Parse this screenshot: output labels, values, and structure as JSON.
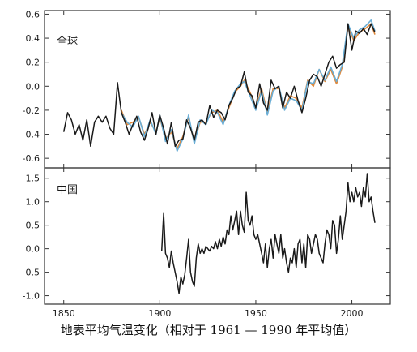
{
  "caption": "地表平均气温变化（相对于 1961 — 1990 年平均值）",
  "colors": {
    "black": "#1a1a1a",
    "orange": "#e0883a",
    "blue": "#6aaed6",
    "frame": "#333333"
  },
  "chart_data": [
    {
      "type": "line",
      "title": "全球",
      "xlim": [
        1840,
        2020
      ],
      "ylim": [
        -0.68,
        0.63
      ],
      "xticks": [
        1850,
        1900,
        1950,
        2000
      ],
      "yticks": [
        -0.6,
        -0.4,
        -0.2,
        0.0,
        0.2,
        0.4,
        0.6
      ],
      "ytick_labels": [
        "-0.6",
        "-0.4",
        "-0.2",
        "0.0",
        "0.2",
        "0.4",
        "0.6"
      ],
      "grid": false,
      "series": [
        {
          "color": "#e0883a",
          "x": [
            1880,
            1883,
            1886,
            1889,
            1892,
            1895,
            1898,
            1900,
            1903,
            1906,
            1909,
            1912,
            1915,
            1918,
            1921,
            1924,
            1927,
            1930,
            1933,
            1936,
            1939,
            1942,
            1944,
            1947,
            1950,
            1953,
            1956,
            1959,
            1962,
            1965,
            1968,
            1971,
            1974,
            1977,
            1980,
            1983,
            1986,
            1989,
            1992,
            1995,
            1998,
            2001,
            2004,
            2007,
            2010,
            2012
          ],
          "y": [
            -0.2,
            -0.32,
            -0.3,
            -0.26,
            -0.4,
            -0.3,
            -0.38,
            -0.26,
            -0.44,
            -0.38,
            -0.52,
            -0.42,
            -0.26,
            -0.46,
            -0.3,
            -0.3,
            -0.22,
            -0.2,
            -0.3,
            -0.18,
            -0.05,
            0.0,
            0.05,
            -0.05,
            -0.18,
            -0.02,
            -0.22,
            -0.02,
            -0.02,
            -0.18,
            -0.08,
            -0.1,
            -0.18,
            0.05,
            0.0,
            0.14,
            0.04,
            0.14,
            0.02,
            0.16,
            0.5,
            0.38,
            0.45,
            0.48,
            0.52,
            0.43
          ]
        },
        {
          "color": "#6aaed6",
          "x": [
            1880,
            1883,
            1886,
            1889,
            1892,
            1895,
            1898,
            1900,
            1903,
            1906,
            1909,
            1912,
            1915,
            1918,
            1921,
            1924,
            1927,
            1930,
            1933,
            1936,
            1939,
            1942,
            1944,
            1947,
            1950,
            1953,
            1956,
            1959,
            1962,
            1965,
            1968,
            1971,
            1974,
            1977,
            1980,
            1983,
            1986,
            1989,
            1992,
            1995,
            1998,
            2001,
            2004,
            2007,
            2010,
            2012
          ],
          "y": [
            -0.22,
            -0.3,
            -0.34,
            -0.25,
            -0.42,
            -0.28,
            -0.4,
            -0.24,
            -0.46,
            -0.36,
            -0.54,
            -0.44,
            -0.24,
            -0.48,
            -0.28,
            -0.32,
            -0.2,
            -0.22,
            -0.32,
            -0.16,
            -0.04,
            0.02,
            0.04,
            -0.08,
            -0.2,
            -0.04,
            -0.24,
            -0.04,
            0.0,
            -0.2,
            -0.1,
            -0.12,
            -0.2,
            0.04,
            0.02,
            0.14,
            0.05,
            0.16,
            0.04,
            0.18,
            0.52,
            0.4,
            0.47,
            0.5,
            0.55,
            0.46
          ]
        },
        {
          "color": "#1a1a1a",
          "x": [
            1850,
            1852,
            1854,
            1856,
            1858,
            1860,
            1862,
            1864,
            1866,
            1868,
            1870,
            1872,
            1874,
            1876,
            1878,
            1880,
            1882,
            1884,
            1886,
            1888,
            1890,
            1892,
            1894,
            1896,
            1898,
            1900,
            1902,
            1904,
            1906,
            1908,
            1910,
            1912,
            1914,
            1916,
            1918,
            1920,
            1922,
            1924,
            1926,
            1928,
            1930,
            1932,
            1934,
            1936,
            1938,
            1940,
            1942,
            1944,
            1946,
            1948,
            1950,
            1952,
            1954,
            1956,
            1958,
            1960,
            1962,
            1964,
            1966,
            1968,
            1970,
            1972,
            1974,
            1976,
            1978,
            1980,
            1982,
            1984,
            1986,
            1988,
            1990,
            1992,
            1994,
            1996,
            1998,
            2000,
            2002,
            2004,
            2006,
            2008,
            2010,
            2012
          ],
          "y": [
            -0.38,
            -0.22,
            -0.28,
            -0.4,
            -0.32,
            -0.45,
            -0.28,
            -0.5,
            -0.3,
            -0.25,
            -0.3,
            -0.25,
            -0.35,
            -0.4,
            0.03,
            -0.22,
            -0.3,
            -0.4,
            -0.32,
            -0.25,
            -0.38,
            -0.45,
            -0.35,
            -0.22,
            -0.4,
            -0.24,
            -0.35,
            -0.48,
            -0.3,
            -0.5,
            -0.45,
            -0.44,
            -0.28,
            -0.35,
            -0.45,
            -0.3,
            -0.28,
            -0.32,
            -0.16,
            -0.26,
            -0.2,
            -0.22,
            -0.28,
            -0.16,
            -0.1,
            -0.02,
            0.0,
            0.12,
            -0.05,
            -0.08,
            -0.18,
            0.02,
            -0.14,
            -0.2,
            0.05,
            -0.02,
            0.0,
            -0.18,
            -0.05,
            -0.1,
            0.0,
            -0.12,
            -0.22,
            -0.1,
            0.05,
            0.1,
            0.08,
            0.0,
            0.1,
            0.2,
            0.25,
            0.15,
            0.18,
            0.2,
            0.52,
            0.3,
            0.46,
            0.44,
            0.48,
            0.43,
            0.52,
            0.45
          ]
        }
      ]
    },
    {
      "type": "line",
      "title": "中国",
      "xlim": [
        1840,
        2020
      ],
      "ylim": [
        -1.18,
        1.72
      ],
      "xticks": [
        1850,
        1900,
        1950,
        2000
      ],
      "xtick_labels": [
        "1850",
        "1900",
        "1950",
        "2000"
      ],
      "yticks": [
        -1.0,
        -0.5,
        0.0,
        0.5,
        1.0,
        1.5
      ],
      "ytick_labels": [
        "-1.0",
        "-0.5",
        "0.0",
        "0.5",
        "1.0",
        "1.5"
      ],
      "grid": false,
      "series": [
        {
          "color": "#1a1a1a",
          "x": [
            1901,
            1902,
            1903,
            1904,
            1905,
            1906,
            1907,
            1908,
            1909,
            1910,
            1911,
            1912,
            1913,
            1914,
            1915,
            1916,
            1917,
            1918,
            1919,
            1920,
            1921,
            1922,
            1923,
            1924,
            1925,
            1926,
            1927,
            1928,
            1929,
            1930,
            1931,
            1932,
            1933,
            1934,
            1935,
            1936,
            1937,
            1938,
            1939,
            1940,
            1941,
            1942,
            1943,
            1944,
            1945,
            1946,
            1947,
            1948,
            1949,
            1950,
            1951,
            1952,
            1953,
            1954,
            1955,
            1956,
            1957,
            1958,
            1959,
            1960,
            1961,
            1962,
            1963,
            1964,
            1965,
            1966,
            1967,
            1968,
            1969,
            1970,
            1971,
            1972,
            1973,
            1974,
            1975,
            1976,
            1977,
            1978,
            1979,
            1980,
            1981,
            1982,
            1983,
            1984,
            1985,
            1986,
            1987,
            1988,
            1989,
            1990,
            1991,
            1992,
            1993,
            1994,
            1995,
            1996,
            1997,
            1998,
            1999,
            2000,
            2001,
            2002,
            2003,
            2004,
            2005,
            2006,
            2007,
            2008,
            2009,
            2010,
            2011,
            2012
          ],
          "y": [
            -0.05,
            0.75,
            -0.1,
            -0.2,
            -0.4,
            -0.05,
            -0.3,
            -0.5,
            -0.7,
            -0.95,
            -0.6,
            -0.75,
            -0.55,
            -0.2,
            0.2,
            -0.5,
            -0.7,
            -0.8,
            -0.2,
            0.1,
            -0.1,
            0.0,
            -0.1,
            0.05,
            0.0,
            -0.05,
            0.05,
            0.0,
            0.15,
            0.0,
            0.2,
            0.05,
            0.25,
            0.1,
            0.4,
            0.3,
            0.7,
            0.4,
            0.6,
            0.8,
            0.3,
            0.8,
            0.5,
            0.35,
            1.2,
            0.6,
            0.5,
            0.7,
            0.3,
            0.2,
            0.3,
            0.1,
            -0.1,
            -0.3,
            0.1,
            -0.4,
            0.0,
            0.2,
            -0.2,
            0.3,
            0.1,
            -0.1,
            0.3,
            -0.2,
            0.0,
            -0.3,
            -0.5,
            -0.2,
            -0.3,
            0.0,
            -0.4,
            0.1,
            0.2,
            -0.3,
            0.1,
            -0.4,
            0.3,
            0.2,
            -0.1,
            0.1,
            0.3,
            0.2,
            -0.1,
            -0.2,
            -0.3,
            0.1,
            0.4,
            0.3,
            0.0,
            0.6,
            0.5,
            -0.1,
            0.2,
            0.7,
            0.2,
            0.5,
            0.8,
            1.4,
            1.0,
            1.2,
            1.0,
            1.3,
            1.1,
            1.2,
            0.9,
            1.3,
            1.1,
            1.6,
            1.0,
            1.1,
            0.8,
            0.55
          ]
        }
      ]
    }
  ]
}
